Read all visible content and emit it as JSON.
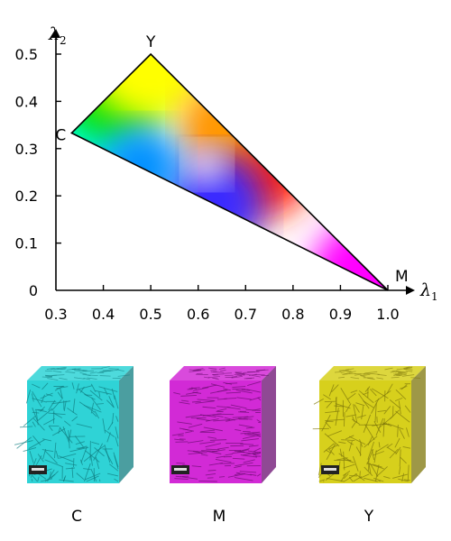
{
  "chart_data": {
    "type": "scatter",
    "x_axis": {
      "symbol": "λ",
      "subscript": "1",
      "ticks": [
        "0.3",
        "0.4",
        "0.5",
        "0.6",
        "0.7",
        "0.8",
        "0.9",
        "1.0"
      ],
      "range": [
        0.3,
        1.0
      ]
    },
    "y_axis": {
      "symbol": "λ",
      "subscript": "2",
      "ticks": [
        "0",
        "0.1",
        "0.2",
        "0.3",
        "0.4",
        "0.5"
      ],
      "range": [
        0,
        0.5
      ]
    },
    "vertices": [
      {
        "label": "C",
        "x": 0.333,
        "y": 0.333,
        "color": "#00ffff"
      },
      {
        "label": "Y",
        "x": 0.5,
        "y": 0.5,
        "color": "#ffff00"
      },
      {
        "label": "M",
        "x": 1.0,
        "y": 0.0,
        "color": "#ff00ff"
      }
    ],
    "grid": false,
    "legend": "none"
  },
  "cubes": [
    {
      "caption": "C",
      "color": "#2fd3d6",
      "dark": "#0f7d80"
    },
    {
      "caption": "M",
      "color": "#d22ad6",
      "dark": "#6a0c70"
    },
    {
      "caption": "Y",
      "color": "#d7d01c",
      "dark": "#7d760a"
    }
  ]
}
